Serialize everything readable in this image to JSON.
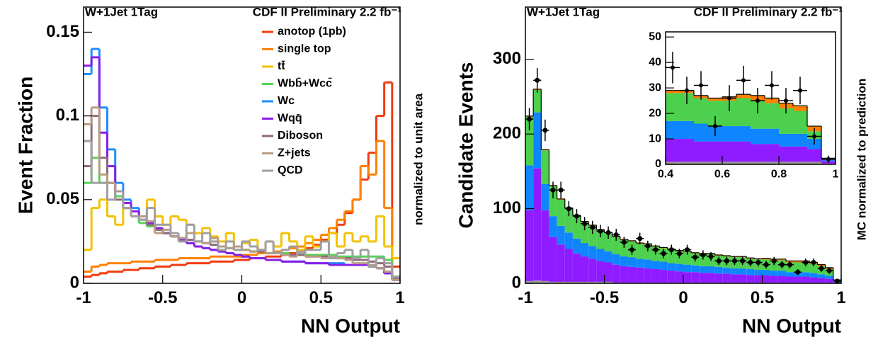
{
  "chart_data": [
    {
      "type": "step-histogram",
      "annotations": [
        "W+1Jet 1Tag",
        "CDF II Preliminary 2.2 fb⁻¹"
      ],
      "xlabel": "NN Output",
      "ylabel": "Event Fraction",
      "ylabel_right": "normalized to unit area",
      "bins": [
        -1,
        -0.95,
        -0.9,
        -0.85,
        -0.8,
        -0.75,
        -0.7,
        -0.65,
        -0.6,
        -0.55,
        -0.5,
        -0.45,
        -0.4,
        -0.35,
        -0.3,
        -0.25,
        -0.2,
        -0.15,
        -0.1,
        -0.05,
        0,
        0.05,
        0.1,
        0.15,
        0.2,
        0.25,
        0.3,
        0.35,
        0.4,
        0.45,
        0.5,
        0.55,
        0.6,
        0.65,
        0.7,
        0.75,
        0.8,
        0.85,
        0.9,
        0.95,
        1
      ],
      "xlim": [
        -1,
        1
      ],
      "xticks": [
        -1,
        -0.5,
        0,
        0.5,
        1
      ],
      "ylim": [
        0,
        0.165
      ],
      "yticks": [
        0,
        0.05,
        0.1,
        0.15
      ],
      "series": [
        {
          "name": "anotop (1pb)",
          "color": "#f03c0f",
          "values": [
            0.004,
            0.005,
            0.006,
            0.007,
            0.007,
            0.008,
            0.008,
            0.009,
            0.009,
            0.01,
            0.01,
            0.011,
            0.011,
            0.012,
            0.012,
            0.012,
            0.013,
            0.013,
            0.013,
            0.014,
            0.014,
            0.015,
            0.015,
            0.016,
            0.016,
            0.017,
            0.018,
            0.019,
            0.021,
            0.023,
            0.026,
            0.03,
            0.035,
            0.042,
            0.05,
            0.062,
            0.078,
            0.1,
            0.12,
            0.01
          ]
        },
        {
          "name": "single top",
          "color": "#ff8000",
          "values": [
            0.007,
            0.01,
            0.011,
            0.012,
            0.012,
            0.012,
            0.013,
            0.013,
            0.013,
            0.014,
            0.014,
            0.014,
            0.015,
            0.015,
            0.015,
            0.015,
            0.016,
            0.016,
            0.016,
            0.016,
            0.017,
            0.017,
            0.018,
            0.018,
            0.019,
            0.02,
            0.021,
            0.022,
            0.024,
            0.026,
            0.029,
            0.033,
            0.038,
            0.043,
            0.05,
            0.07,
            0.065,
            0.085,
            0.045,
            0.003
          ]
        },
        {
          "name": "tt̄",
          "color": "#f2c200",
          "values": [
            0.02,
            0.045,
            0.05,
            0.04,
            0.035,
            0.045,
            0.04,
            0.04,
            0.05,
            0.04,
            0.035,
            0.04,
            0.038,
            0.035,
            0.03,
            0.033,
            0.028,
            0.025,
            0.03,
            0.022,
            0.024,
            0.026,
            0.02,
            0.025,
            0.022,
            0.03,
            0.025,
            0.02,
            0.028,
            0.022,
            0.025,
            0.03,
            0.022,
            0.03,
            0.025,
            0.028,
            0.025,
            0.04,
            0.022,
            0.015
          ]
        },
        {
          "name": "Wbb̄+Wcc̄",
          "color": "#55d455",
          "values": [
            0.06,
            0.075,
            0.06,
            0.06,
            0.052,
            0.045,
            0.04,
            0.036,
            0.034,
            0.032,
            0.03,
            0.028,
            0.027,
            0.026,
            0.025,
            0.024,
            0.023,
            0.022,
            0.021,
            0.02,
            0.02,
            0.019,
            0.019,
            0.018,
            0.018,
            0.018,
            0.017,
            0.017,
            0.017,
            0.017,
            0.017,
            0.017,
            0.016,
            0.016,
            0.016,
            0.016,
            0.016,
            0.016,
            0.014,
            0.004
          ]
        },
        {
          "name": "Wc",
          "color": "#1e8cff",
          "values": [
            0.125,
            0.14,
            0.105,
            0.08,
            0.06,
            0.05,
            0.045,
            0.04,
            0.036,
            0.033,
            0.03,
            0.028,
            0.026,
            0.024,
            0.022,
            0.021,
            0.02,
            0.019,
            0.018,
            0.017,
            0.016,
            0.015,
            0.015,
            0.014,
            0.014,
            0.013,
            0.013,
            0.013,
            0.012,
            0.012,
            0.012,
            0.012,
            0.012,
            0.011,
            0.011,
            0.011,
            0.01,
            0.009,
            0.006,
            0.002
          ]
        },
        {
          "name": "Wqq̄",
          "color": "#8a1ee6",
          "values": [
            0.13,
            0.135,
            0.09,
            0.07,
            0.055,
            0.048,
            0.043,
            0.04,
            0.036,
            0.033,
            0.03,
            0.028,
            0.026,
            0.024,
            0.022,
            0.021,
            0.02,
            0.019,
            0.018,
            0.017,
            0.016,
            0.015,
            0.015,
            0.014,
            0.014,
            0.013,
            0.013,
            0.013,
            0.012,
            0.012,
            0.012,
            0.011,
            0.011,
            0.011,
            0.011,
            0.011,
            0.01,
            0.009,
            0.006,
            0.002
          ]
        },
        {
          "name": "Diboson",
          "color": "#8e6a7c",
          "values": [
            0.07,
            0.1,
            0.075,
            0.06,
            0.05,
            0.045,
            0.04,
            0.038,
            0.035,
            0.032,
            0.03,
            0.028,
            0.027,
            0.026,
            0.025,
            0.024,
            0.023,
            0.022,
            0.021,
            0.02,
            0.02,
            0.019,
            0.019,
            0.018,
            0.018,
            0.017,
            0.017,
            0.017,
            0.016,
            0.016,
            0.016,
            0.015,
            0.015,
            0.015,
            0.014,
            0.014,
            0.013,
            0.012,
            0.01,
            0.003
          ]
        },
        {
          "name": "Z+jets",
          "color": "#b89c84",
          "values": [
            0.095,
            0.105,
            0.065,
            0.06,
            0.055,
            0.045,
            0.04,
            0.04,
            0.037,
            0.03,
            0.032,
            0.028,
            0.027,
            0.03,
            0.025,
            0.024,
            0.027,
            0.022,
            0.021,
            0.022,
            0.02,
            0.019,
            0.02,
            0.018,
            0.018,
            0.017,
            0.016,
            0.019,
            0.016,
            0.016,
            0.015,
            0.016,
            0.015,
            0.014,
            0.012,
            0.012,
            0.011,
            0.009,
            0.007,
            0.002
          ]
        },
        {
          "name": "QCD",
          "color": "#a0a0a0",
          "values": [
            0.085,
            0.06,
            0.06,
            0.05,
            0.055,
            0.045,
            0.04,
            0.038,
            0.045,
            0.035,
            0.035,
            0.03,
            0.025,
            0.035,
            0.025,
            0.03,
            0.025,
            0.02,
            0.025,
            0.02,
            0.025,
            0.022,
            0.02,
            0.025,
            0.018,
            0.02,
            0.022,
            0.018,
            0.02,
            0.02,
            0.025,
            0.015,
            0.018,
            0.02,
            0.015,
            0.02,
            0.01,
            0.015,
            0.012,
            0.004
          ]
        }
      ]
    },
    {
      "type": "stacked-histogram",
      "annotations": [
        "W+1Jet 1Tag",
        "CDF II Preliminary 2.2 fb⁻¹"
      ],
      "xlabel": "NN Output",
      "ylabel": "Candidate Events",
      "ylabel_right": "MC normalized to prediction",
      "bins": [
        -1,
        -0.95,
        -0.9,
        -0.85,
        -0.8,
        -0.75,
        -0.7,
        -0.65,
        -0.6,
        -0.55,
        -0.5,
        -0.45,
        -0.4,
        -0.35,
        -0.3,
        -0.25,
        -0.2,
        -0.15,
        -0.1,
        -0.05,
        0,
        0.05,
        0.1,
        0.15,
        0.2,
        0.25,
        0.3,
        0.35,
        0.4,
        0.45,
        0.5,
        0.55,
        0.6,
        0.65,
        0.7,
        0.75,
        0.8,
        0.85,
        0.9,
        0.95,
        1
      ],
      "xlim": [
        -1,
        1
      ],
      "xticks": [
        -1,
        -0.5,
        0,
        0.5,
        1
      ],
      "ylim": [
        0,
        370
      ],
      "yticks": [
        0,
        100,
        200,
        300
      ],
      "series": [
        {
          "color": "#9a9a9a",
          "values": [
            3,
            4,
            3,
            2,
            2,
            2,
            2,
            2,
            2,
            2,
            2,
            1,
            1,
            1,
            1,
            1,
            1,
            1,
            1,
            1,
            1,
            1,
            1,
            1,
            1,
            1,
            1,
            1,
            1,
            1,
            1,
            1,
            1,
            1,
            1,
            1,
            1,
            1,
            1,
            0.3
          ]
        },
        {
          "color": "#8f1bff",
          "values": [
            95,
            150,
            95,
            60,
            50,
            44,
            38,
            34,
            31,
            28,
            26,
            24,
            22,
            21,
            20,
            19,
            18,
            17,
            16,
            15,
            14,
            14,
            13,
            13,
            12,
            12,
            11,
            11,
            10,
            10,
            10,
            9,
            9,
            8,
            8,
            8,
            7,
            6,
            5,
            1
          ]
        },
        {
          "color": "#0f86ff",
          "values": [
            60,
            75,
            35,
            28,
            25,
            22,
            20,
            18,
            17,
            16,
            15,
            14,
            13,
            13,
            12,
            12,
            11,
            11,
            10,
            10,
            10,
            9,
            9,
            9,
            9,
            8,
            8,
            8,
            8,
            7,
            7,
            7,
            7,
            6,
            6,
            6,
            6,
            5,
            4,
            1
          ]
        },
        {
          "color": "#4dd04d",
          "values": [
            65,
            30,
            45,
            40,
            35,
            32,
            30,
            28,
            27,
            25,
            24,
            23,
            22,
            21,
            20,
            20,
            19,
            18,
            18,
            17,
            17,
            16,
            16,
            16,
            15,
            15,
            15,
            15,
            14,
            14,
            14,
            14,
            14,
            13,
            13,
            13,
            12,
            11,
            9,
            2
          ]
        },
        {
          "color": "#ff7f00",
          "values": [
            1,
            1,
            1,
            1,
            1,
            1,
            1,
            1,
            1,
            1,
            1,
            1,
            1,
            1,
            1,
            1,
            1,
            1,
            1,
            1,
            1,
            1,
            1,
            1,
            1,
            1,
            1,
            1,
            1,
            1,
            1.5,
            1.5,
            1.5,
            2,
            2,
            2,
            2,
            2,
            2,
            0.3
          ]
        }
      ],
      "data": {
        "values": [
          220,
          272,
          205,
          125,
          125,
          100,
          90,
          80,
          75,
          70,
          68,
          65,
          55,
          45,
          60,
          50,
          45,
          40,
          45,
          40,
          45,
          35,
          38,
          36,
          30,
          30,
          30,
          30,
          28,
          28,
          25,
          30,
          25,
          25,
          15,
          28,
          28,
          20,
          17,
          3
        ],
        "errors": [
          15,
          16.5,
          14.3,
          11.2,
          11.2,
          10,
          9.5,
          8.9,
          8.7,
          8.4,
          8.2,
          8.1,
          7.4,
          6.7,
          7.7,
          7.1,
          6.7,
          6.3,
          6.7,
          6.3,
          6.7,
          5.9,
          6.2,
          6,
          5.5,
          5.5,
          5.5,
          5.5,
          5.3,
          5.3,
          5,
          5.5,
          5,
          5,
          3.9,
          5.3,
          5.3,
          4.5,
          4.1,
          1.7
        ]
      }
    },
    {
      "type": "stacked-histogram",
      "bins": [
        0.4,
        0.45,
        0.5,
        0.55,
        0.6,
        0.65,
        0.7,
        0.75,
        0.8,
        0.85,
        0.9,
        0.95,
        1
      ],
      "xlim": [
        0.4,
        1
      ],
      "xticks": [
        0.4,
        0.6,
        0.8,
        1
      ],
      "ylim": [
        0,
        52
      ],
      "yticks": [
        0,
        10,
        20,
        30,
        40,
        50
      ],
      "series": [
        {
          "color": "#9a9a9a",
          "values": [
            1,
            1,
            1,
            1,
            1,
            1,
            1,
            1,
            1,
            1,
            1,
            0.3
          ]
        },
        {
          "color": "#8f1bff",
          "values": [
            9,
            9,
            8,
            8,
            8,
            8,
            7,
            7,
            6,
            6,
            5,
            1
          ]
        },
        {
          "color": "#0f86ff",
          "values": [
            7,
            7,
            7,
            6,
            6,
            6,
            6,
            6,
            5,
            5,
            4,
            0.5
          ]
        },
        {
          "color": "#4dd04d",
          "values": [
            11,
            11,
            10,
            10,
            10,
            11,
            11,
            10,
            10,
            9,
            3,
            0.3
          ]
        },
        {
          "color": "#ff7f00",
          "values": [
            1,
            1,
            1,
            1,
            1.5,
            1.5,
            2,
            2,
            2,
            2,
            2,
            0.3
          ]
        }
      ],
      "data": {
        "values": [
          38,
          29,
          31,
          15,
          26,
          33,
          25,
          31,
          25,
          29,
          11,
          2
        ],
        "errors": [
          6.2,
          5.4,
          5.6,
          3.9,
          5.1,
          5.7,
          5,
          5.6,
          5,
          5.4,
          3.3,
          1.4
        ]
      }
    }
  ]
}
